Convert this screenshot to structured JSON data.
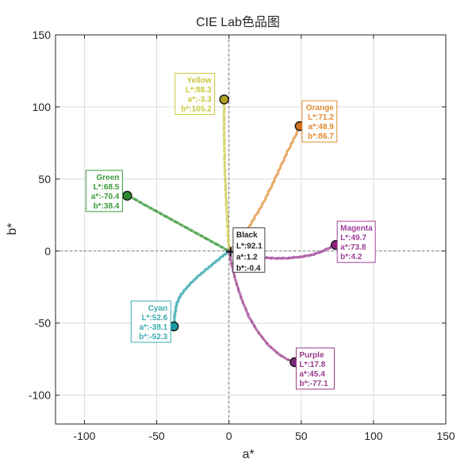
{
  "chart_data": {
    "type": "scatter",
    "title": "CIE Lab色品图",
    "xlabel": "a*",
    "ylabel": "b*",
    "xlim": [
      -120,
      150
    ],
    "ylim": [
      -120,
      150
    ],
    "xticks": [
      -100,
      -50,
      0,
      50,
      100,
      150
    ],
    "yticks": [
      -100,
      -50,
      0,
      50,
      100,
      150
    ],
    "tick_labels_x": [
      "-100",
      "-50",
      "0",
      "50",
      "100",
      "150"
    ],
    "tick_labels_y": [
      "-100",
      "-50",
      "0",
      "50",
      "100",
      "150"
    ],
    "grid": true,
    "reference_lines": [
      0
    ],
    "colors": {
      "Black": "#222222",
      "Yellow": "#c8c83a",
      "Orange": "#e08a30",
      "Green": "#3a9a3a",
      "Magenta": "#a0409a",
      "Cyan": "#3aaab0",
      "Purple": "#9a3a8a"
    },
    "series": [
      {
        "name": "Yellow",
        "fill": "#b0a020",
        "path": [
          [
            0,
            0
          ],
          [
            -0.5,
            8
          ],
          [
            -1,
            18
          ],
          [
            -1.5,
            28
          ],
          [
            -2.2,
            40
          ],
          [
            -2.8,
            55
          ],
          [
            -3.2,
            72
          ],
          [
            -3.4,
            90
          ],
          [
            -3.3,
            105.2
          ]
        ],
        "endpoint": {
          "a": -3.3,
          "b": 105.2
        },
        "labels": [
          "Yellow",
          "L*:88.3",
          "a*:-3.3",
          "b*:105.2"
        ]
      },
      {
        "name": "Orange",
        "fill": "#d07020",
        "path": [
          [
            0,
            0
          ],
          [
            5,
            5
          ],
          [
            11,
            12
          ],
          [
            17,
            22
          ],
          [
            23,
            32
          ],
          [
            29,
            44
          ],
          [
            35,
            57
          ],
          [
            41,
            70
          ],
          [
            46,
            80
          ],
          [
            48.9,
            86.7
          ]
        ],
        "endpoint": {
          "a": 48.9,
          "b": 86.7
        },
        "labels": [
          "Orange",
          "L*:71.2",
          "a*:48.9",
          "b*:86.7"
        ]
      },
      {
        "name": "Green",
        "fill": "#2a8a2a",
        "path": [
          [
            0,
            0
          ],
          [
            -10,
            5.5
          ],
          [
            -20,
            11
          ],
          [
            -30,
            16.5
          ],
          [
            -40,
            22
          ],
          [
            -50,
            27.5
          ],
          [
            -60,
            33
          ],
          [
            -66,
            36.5
          ],
          [
            -70.4,
            38.4
          ]
        ],
        "endpoint": {
          "a": -70.4,
          "b": 38.4
        },
        "labels": [
          "Green",
          "L*:68.5",
          "a*:-70.4",
          "b*:38.4"
        ]
      },
      {
        "name": "Magenta",
        "fill": "#902080",
        "path": [
          [
            0,
            0
          ],
          [
            10,
            -2.5
          ],
          [
            20,
            -4
          ],
          [
            30,
            -5
          ],
          [
            40,
            -5
          ],
          [
            50,
            -4
          ],
          [
            58,
            -2.5
          ],
          [
            65,
            0
          ],
          [
            70,
            2.5
          ],
          [
            73.8,
            4.2
          ]
        ],
        "endpoint": {
          "a": 73.8,
          "b": 4.2
        },
        "labels": [
          "Magenta",
          "L*:49.7",
          "a*:73.8",
          "b*:4.2"
        ]
      },
      {
        "name": "Cyan",
        "fill": "#1a9aa0",
        "path": [
          [
            0,
            0
          ],
          [
            -5,
            -4
          ],
          [
            -10,
            -8
          ],
          [
            -16,
            -13
          ],
          [
            -22,
            -18
          ],
          [
            -28,
            -24
          ],
          [
            -33,
            -30
          ],
          [
            -36,
            -36
          ],
          [
            -37.5,
            -44
          ],
          [
            -38.1,
            -52.3
          ]
        ],
        "endpoint": {
          "a": -38.1,
          "b": -52.3
        },
        "labels": [
          "Cyan",
          "L*:52.6",
          "a*:-38.1",
          "b*:-52.3"
        ]
      },
      {
        "name": "Purple",
        "fill": "#7a2a7a",
        "path": [
          [
            0,
            0
          ],
          [
            2,
            -10
          ],
          [
            5,
            -22
          ],
          [
            9,
            -34
          ],
          [
            14,
            -46
          ],
          [
            20,
            -56
          ],
          [
            27,
            -65
          ],
          [
            35,
            -72
          ],
          [
            41,
            -75.5
          ],
          [
            45.4,
            -77.1
          ]
        ],
        "endpoint": {
          "a": 45.4,
          "b": -77.1
        },
        "labels": [
          "Purple",
          "L*:17.8",
          "a*:45.4",
          "b*:-77.1"
        ]
      }
    ],
    "black_point": {
      "name": "Black",
      "a": 1.2,
      "b": -0.4,
      "labels": [
        "Black",
        "L*:92.1",
        "a*:1.2",
        "b*:-0.4"
      ]
    }
  }
}
